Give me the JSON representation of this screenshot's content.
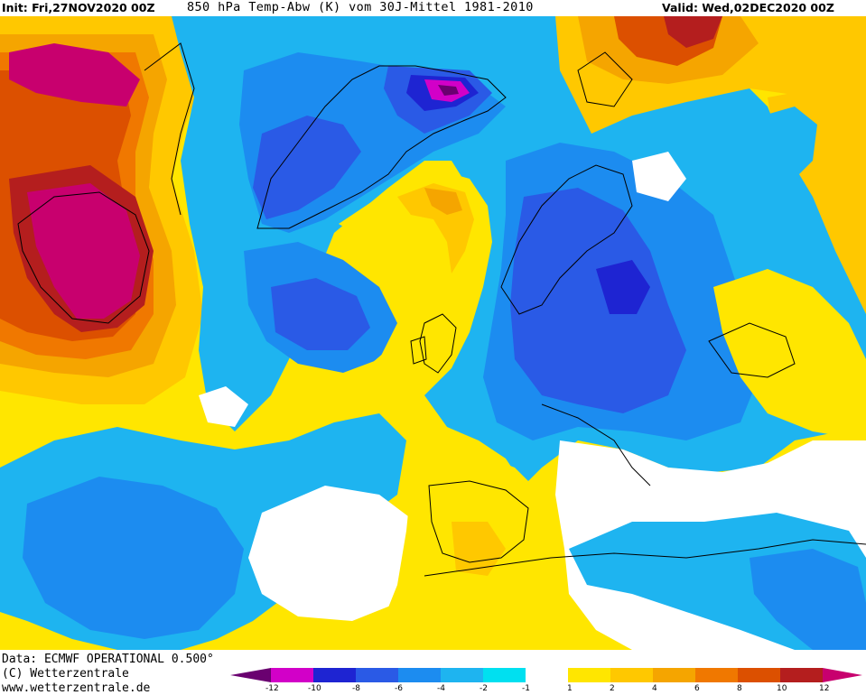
{
  "header": {
    "init_text": "Init: Fri,27NOV2020 00Z",
    "variable_text": "850 hPa Temp-Abw (K) vom 30J-Mittel 1981-2010",
    "valid_text": "Valid: Wed,02DEC2020 00Z"
  },
  "footer": {
    "data_source": "Data: ECMWF OPERATIONAL 0.500°",
    "copyright": "(C) Wetterzentrale",
    "website": "www.wetterzentrale.de"
  },
  "colorbar": {
    "labels": [
      "-12",
      "-10",
      "-8",
      "-6",
      "-4",
      "-2",
      "-1",
      "1",
      "2",
      "4",
      "6",
      "8",
      "10",
      "12"
    ],
    "colors": {
      "lt_m12": "#6a0070",
      "m12_m10": "#d200c8",
      "m10_m8": "#1e24d2",
      "m8_m6": "#2a5ae6",
      "m6_m4": "#1c8cf0",
      "m4_m2": "#1eb4f0",
      "m2_m1": "#00e0f0",
      "m1_1": "#ffffff",
      "p1_2": "#ffe600",
      "p2_4": "#ffc800",
      "p4_6": "#f5a500",
      "p6_8": "#f07800",
      "p8_10": "#dc5000",
      "p10_12": "#b41e1e",
      "gt_12": "#c8006e"
    }
  }
}
